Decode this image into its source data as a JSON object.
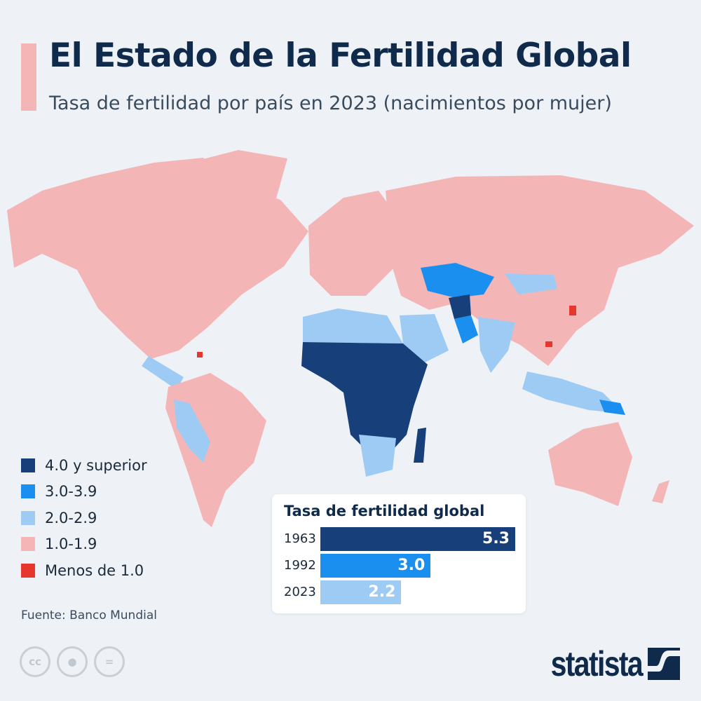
{
  "header": {
    "title": "El Estado de la Fertilidad Global",
    "subtitle": "Tasa de fertilidad por país en 2023 (nacimientos por mujer)"
  },
  "colors": {
    "accent": "#f4b5b7",
    "cat_4_plus": "#173f7a",
    "cat_3_39": "#1a8ff0",
    "cat_2_29": "#9ecbf3",
    "cat_1_19": "#f4b5b7",
    "cat_below_1": "#e5372e",
    "background": "#eef2f6"
  },
  "legend": {
    "items": [
      {
        "label": "4.0 y superior",
        "color": "#173f7a"
      },
      {
        "label": "3.0-3.9",
        "color": "#1a8ff0"
      },
      {
        "label": "2.0-2.9",
        "color": "#9ecbf3"
      },
      {
        "label": "1.0-1.9",
        "color": "#f4b5b7"
      },
      {
        "label": "Menos de 1.0",
        "color": "#e5372e"
      }
    ]
  },
  "source": "Fuente: Banco Mundial",
  "license_icons": [
    "cc-icon",
    "attribution-icon",
    "no-derivatives-icon"
  ],
  "brand": {
    "name": "statista"
  },
  "chart_data": {
    "type": "bar",
    "orientation": "horizontal",
    "title": "Tasa de fertilidad global",
    "categories": [
      "1963",
      "1992",
      "2023"
    ],
    "values": [
      5.3,
      3.0,
      2.2
    ],
    "value_labels": [
      "5.3",
      "3.0",
      "2.2"
    ],
    "colors": [
      "#173f7a",
      "#1a8ff0",
      "#9ecbf3"
    ],
    "xlim": [
      0,
      5.3
    ],
    "grid": false
  }
}
